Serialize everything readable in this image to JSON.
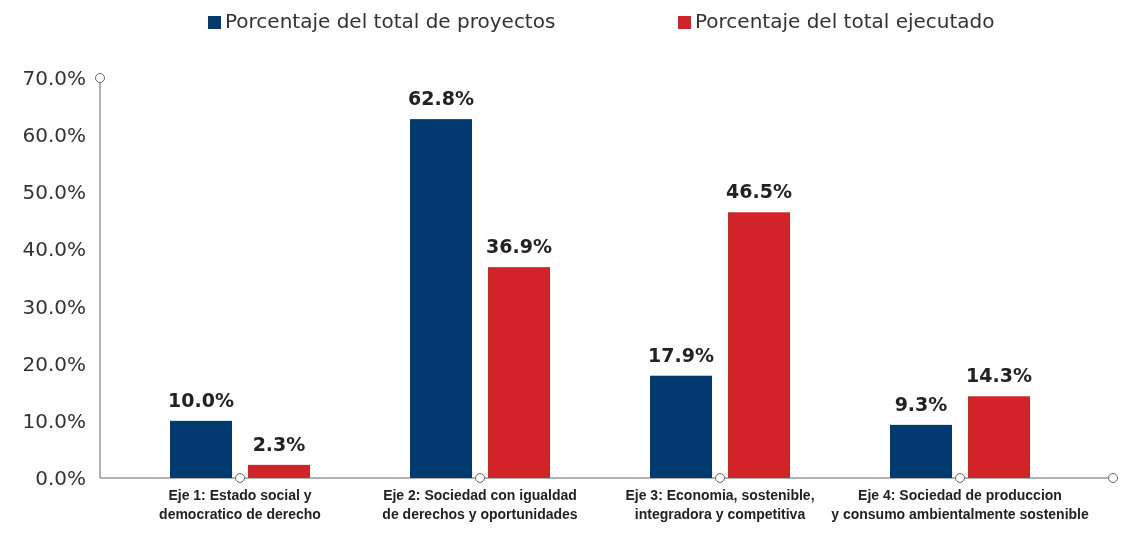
{
  "chart_data": {
    "type": "bar",
    "categories": [
      "Eje 1:  Estado social y\ndemocratico de derecho",
      "Eje 2: Sociedad con igualdad\nde derechos y oportunidades",
      "Eje 3: Economia, sostenible,\nintegradora y competitiva",
      "Eje 4: Sociedad de produccion\ny consumo ambientalmente sostenible"
    ],
    "series": [
      {
        "name": "Porcentaje del total de proyectos",
        "color": "#003a70",
        "values": [
          10.0,
          62.8,
          17.9,
          9.3
        ],
        "value_labels": [
          "10.0%",
          "62.8%",
          "17.9%",
          "9.3%"
        ]
      },
      {
        "name": "Porcentaje del total ejecutado",
        "color": "#d2232a",
        "values": [
          2.3,
          36.9,
          46.5,
          14.3
        ],
        "value_labels": [
          "2.3%",
          "36.9%",
          "46.5%",
          "14.3%"
        ]
      }
    ],
    "ylim": [
      0,
      70
    ],
    "yticks": [
      {
        "value": 0,
        "label": "0.0%"
      },
      {
        "value": 10,
        "label": "10.0%"
      },
      {
        "value": 20,
        "label": "20.0%"
      },
      {
        "value": 30,
        "label": "30.0%"
      },
      {
        "value": 40,
        "label": "40.0%"
      },
      {
        "value": 50,
        "label": "50.0%"
      },
      {
        "value": 60,
        "label": "60.0%"
      },
      {
        "value": 70,
        "label": "70.0%"
      }
    ],
    "grid": false,
    "legend": "top"
  }
}
